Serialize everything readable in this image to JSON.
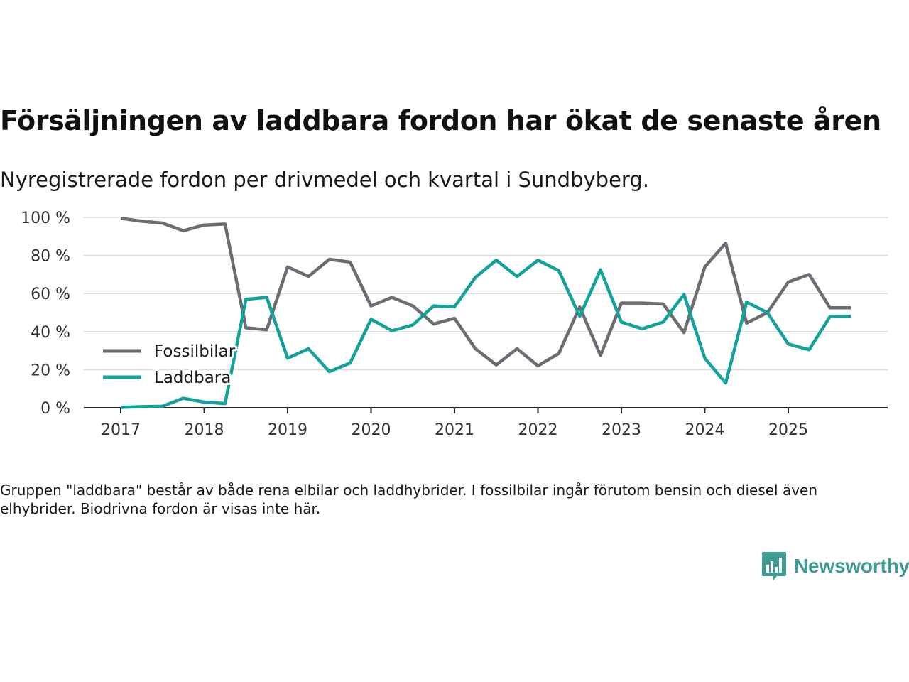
{
  "title": "Försäljningen av laddbara fordon har ökat de senaste åren",
  "subtitle": "Nyregistrerade fordon per drivmedel och kvartal i Sundbyberg.",
  "note": "Gruppen \"laddbara\" består av både rena elbilar och laddhybrider. I fossilbilar ingår förutom bensin och diesel även elhybrider. Biodrivna fordon är visas inte här.",
  "brand": {
    "name": "Newsworthy",
    "icon": "newsworthy-logo-icon",
    "color": "#3d9b8f"
  },
  "chart_data": {
    "type": "line",
    "title": "Försäljningen av laddbara fordon har ökat de senaste åren",
    "xlabel": "",
    "ylabel": "",
    "x_ticks": [
      "2017",
      "2018",
      "2019",
      "2020",
      "2021",
      "2022",
      "2023",
      "2024",
      "2025"
    ],
    "y_ticks": [
      "0 %",
      "20 %",
      "40 %",
      "60 %",
      "80 %",
      "100 %"
    ],
    "ylim": [
      0,
      100
    ],
    "xlim": [
      2017.0,
      2026.25
    ],
    "grid": true,
    "legend_position": "left",
    "x": [
      2017.0,
      2017.25,
      2017.5,
      2017.75,
      2018.0,
      2018.25,
      2018.5,
      2018.75,
      2019.0,
      2019.25,
      2019.5,
      2019.75,
      2020.0,
      2020.25,
      2020.5,
      2020.75,
      2021.0,
      2021.25,
      2021.5,
      2021.75,
      2022.0,
      2022.25,
      2022.5,
      2022.75,
      2023.0,
      2023.25,
      2023.5,
      2023.75,
      2024.0,
      2024.25,
      2024.5,
      2024.75,
      2025.0,
      2025.25,
      2025.5,
      2025.75
    ],
    "series": [
      {
        "name": "Fossilbilar",
        "color": "#6d6b73",
        "values": [
          99.5,
          98,
          97,
          93,
          96,
          96.5,
          42,
          41,
          74,
          69,
          78,
          76.5,
          53.5,
          58,
          53.5,
          44,
          47,
          31,
          22.5,
          31,
          22,
          28.5,
          53,
          27.5,
          55,
          55,
          54.5,
          39.5,
          74,
          86.5,
          44.5,
          50,
          66,
          70,
          52.5,
          52.5
        ]
      },
      {
        "name": "Laddbara",
        "color": "#14a39a",
        "values": [
          0.2,
          0.6,
          0.8,
          5,
          3,
          2.2,
          57,
          58,
          26,
          31,
          19,
          23.5,
          46.5,
          40.5,
          43.5,
          53.5,
          53,
          68.5,
          77.5,
          69,
          77.5,
          72,
          48,
          72.5,
          45,
          41.5,
          45,
          59.5,
          26,
          13,
          55.5,
          50,
          33.5,
          30.5,
          48,
          48
        ]
      }
    ]
  }
}
